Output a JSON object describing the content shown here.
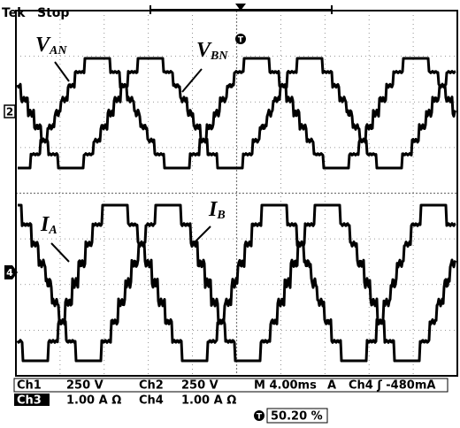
{
  "header": {
    "brand": "Tek",
    "status": "Stop",
    "trigger_marker": "T"
  },
  "channel_markers": {
    "upper": "2",
    "lower": "4"
  },
  "labels": [
    {
      "main": "V",
      "sub": "AN"
    },
    {
      "main": "V",
      "sub": "BN"
    },
    {
      "main": "I",
      "sub": "A"
    },
    {
      "main": "I",
      "sub": "B"
    }
  ],
  "readout": {
    "row1": {
      "ch1": "Ch1",
      "ch1_scale": "250 V",
      "ch2": "Ch2",
      "ch2_scale": "250 V",
      "time": "M 4.00ms",
      "trigger_label": "A",
      "trigger_setting": "Ch4 ʃ -480mA"
    },
    "row2": {
      "ch3": "Ch3",
      "ch3_scale": "1.00 A Ω",
      "ch4": "Ch4",
      "ch4_scale": "1.00 A Ω"
    },
    "row3": {
      "marker": "T",
      "position": "50.20 %"
    }
  }
}
